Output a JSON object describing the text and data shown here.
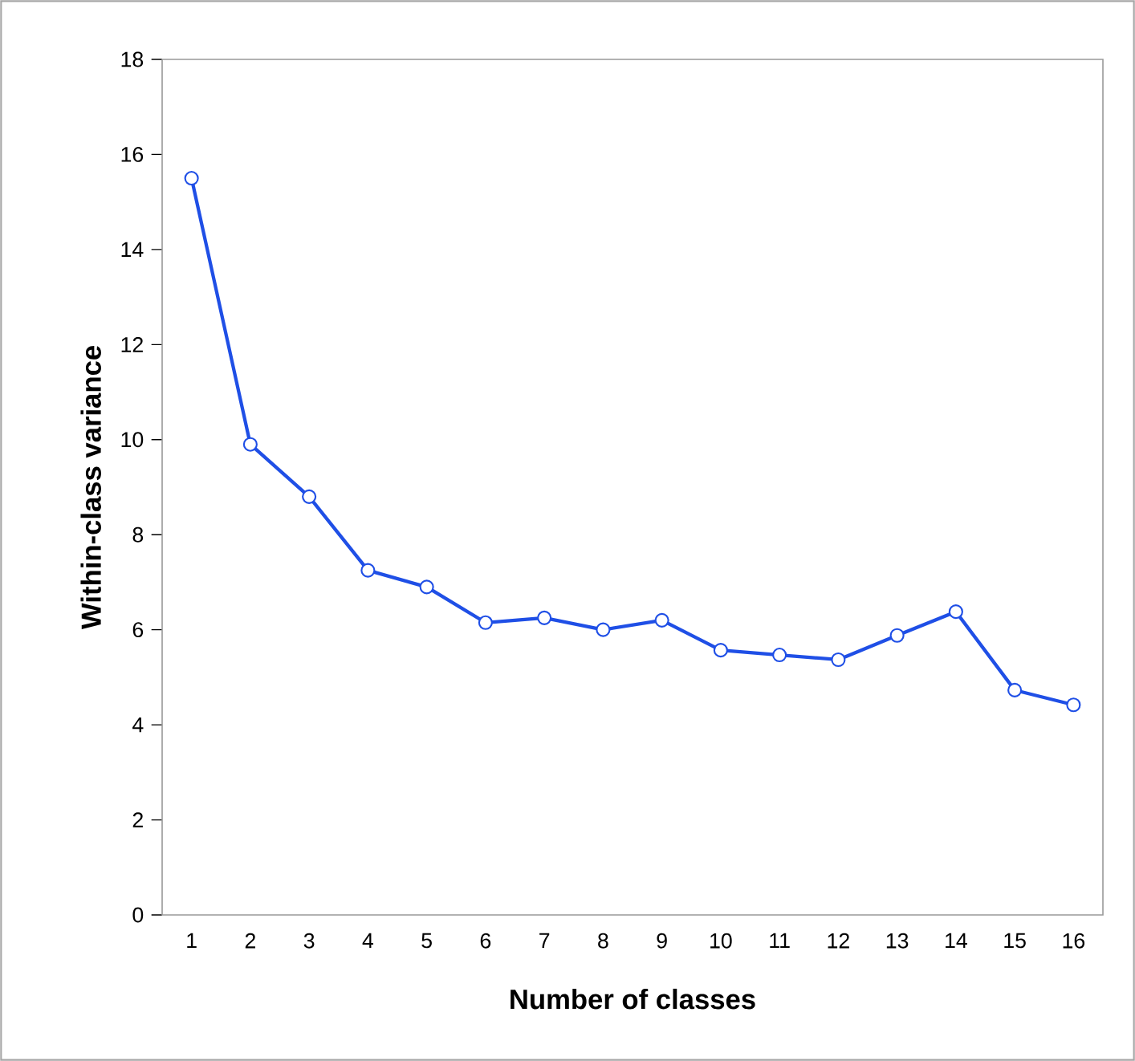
{
  "chart_data": {
    "type": "line",
    "xlabel": "Number of classes",
    "ylabel": "Within-class variance",
    "categories": [
      "1",
      "2",
      "3",
      "4",
      "5",
      "6",
      "7",
      "8",
      "9",
      "10",
      "11",
      "12",
      "13",
      "14",
      "15",
      "16"
    ],
    "series": [
      {
        "color": "#1f4fe6",
        "values": [
          15.5,
          9.9,
          8.8,
          7.25,
          6.9,
          6.15,
          6.25,
          6.0,
          6.2,
          5.57,
          5.47,
          5.37,
          5.88,
          6.38,
          4.73,
          4.42
        ]
      }
    ],
    "ylim": [
      0,
      18
    ],
    "yticks": [
      0,
      2,
      4,
      6,
      8,
      10,
      12,
      14,
      16,
      18
    ],
    "grid": false,
    "marker": "circle",
    "line_style": "solid"
  }
}
